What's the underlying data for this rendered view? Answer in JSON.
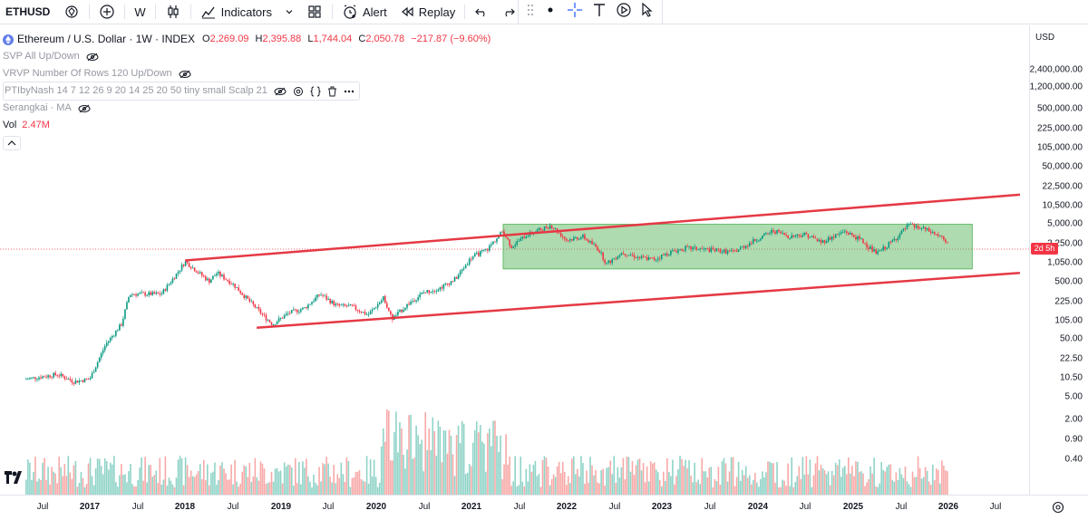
{
  "toolbar": {
    "symbol": "ETHUSD",
    "interval": "W",
    "indicators_label": "Indicators",
    "alert_label": "Alert",
    "replay_label": "Replay"
  },
  "legend": {
    "title": "Ethereum / U.S. Dollar · 1W · INDEX",
    "open_key": "O",
    "open": "2,269.09",
    "high_key": "H",
    "high": "2,395.88",
    "low_key": "L",
    "low": "1,744.04",
    "close_key": "C",
    "close": "2,050.78",
    "change": "−217.87 (−9.60%)",
    "indicators": [
      "SVP All Up/Down",
      "VRVP Number Of Rows 120 Up/Down",
      "PTIbyNash 14 7 12 26 9 20 14 25 20 50 tiny small Scalp 21",
      "Serangkai · MA"
    ],
    "vol_label": "Vol",
    "vol_value": "2.47M"
  },
  "price_axis": {
    "currency": "USD",
    "labels": [
      "2,400,000.00",
      "1,200,000.00",
      "500,000.00",
      "225,000.00",
      "105,000.00",
      "50,000.00",
      "22,500.00",
      "10,500.00",
      "5,000.00",
      "2,250.00",
      "1,050.00",
      "500.00",
      "225.00",
      "105.00",
      "50.00",
      "22.50",
      "10.50",
      "5.00",
      "2.00",
      "0.90",
      "0.40"
    ],
    "current_tag": "2d 5h"
  },
  "time_axis": {
    "labels": [
      {
        "text": "Jul",
        "year": false
      },
      {
        "text": "2017",
        "year": true
      },
      {
        "text": "Jul",
        "year": false
      },
      {
        "text": "2018",
        "year": true
      },
      {
        "text": "Jul",
        "year": false
      },
      {
        "text": "2019",
        "year": true
      },
      {
        "text": "Jul",
        "year": false
      },
      {
        "text": "2020",
        "year": true
      },
      {
        "text": "Jul",
        "year": false
      },
      {
        "text": "2021",
        "year": true
      },
      {
        "text": "Jul",
        "year": false
      },
      {
        "text": "2022",
        "year": true
      },
      {
        "text": "Jul",
        "year": false
      },
      {
        "text": "2023",
        "year": true
      },
      {
        "text": "Jul",
        "year": false
      },
      {
        "text": "2024",
        "year": true
      },
      {
        "text": "Jul",
        "year": false
      },
      {
        "text": "2025",
        "year": true
      },
      {
        "text": "Jul",
        "year": false
      },
      {
        "text": "2026",
        "year": true
      },
      {
        "text": "Jul",
        "year": false
      }
    ]
  },
  "chart_data": {
    "type": "line",
    "y_scale": "log",
    "x_range": [
      "2016-04",
      "2026-10"
    ],
    "y_range": [
      0.3,
      3000000
    ],
    "price_series": [
      [
        "2016-05",
        10
      ],
      [
        "2016-07",
        11
      ],
      [
        "2016-09",
        12
      ],
      [
        "2016-11",
        9
      ],
      [
        "2017-01",
        10
      ],
      [
        "2017-03",
        40
      ],
      [
        "2017-05",
        90
      ],
      [
        "2017-06",
        300
      ],
      [
        "2017-08",
        300
      ],
      [
        "2017-10",
        300
      ],
      [
        "2017-12",
        700
      ],
      [
        "2018-01",
        1100
      ],
      [
        "2018-02",
        850
      ],
      [
        "2018-04",
        500
      ],
      [
        "2018-05",
        700
      ],
      [
        "2018-07",
        450
      ],
      [
        "2018-09",
        230
      ],
      [
        "2018-11",
        120
      ],
      [
        "2018-12",
        90
      ],
      [
        "2019-02",
        140
      ],
      [
        "2019-04",
        170
      ],
      [
        "2019-06",
        300
      ],
      [
        "2019-08",
        190
      ],
      [
        "2019-10",
        180
      ],
      [
        "2019-12",
        130
      ],
      [
        "2020-02",
        260
      ],
      [
        "2020-03",
        110
      ],
      [
        "2020-05",
        200
      ],
      [
        "2020-07",
        320
      ],
      [
        "2020-09",
        380
      ],
      [
        "2020-11",
        550
      ],
      [
        "2021-01",
        1300
      ],
      [
        "2021-03",
        1800
      ],
      [
        "2021-05",
        3800
      ],
      [
        "2021-06",
        2000
      ],
      [
        "2021-08",
        3200
      ],
      [
        "2021-11",
        4700
      ],
      [
        "2022-01",
        2600
      ],
      [
        "2022-03",
        3000
      ],
      [
        "2022-05",
        1800
      ],
      [
        "2022-06",
        1000
      ],
      [
        "2022-08",
        1600
      ],
      [
        "2022-10",
        1300
      ],
      [
        "2022-12",
        1200
      ],
      [
        "2023-02",
        1600
      ],
      [
        "2023-04",
        1900
      ],
      [
        "2023-06",
        1800
      ],
      [
        "2023-08",
        1700
      ],
      [
        "2023-10",
        1600
      ],
      [
        "2023-12",
        2300
      ],
      [
        "2024-03",
        3800
      ],
      [
        "2024-05",
        3000
      ],
      [
        "2024-07",
        3300
      ],
      [
        "2024-09",
        2400
      ],
      [
        "2024-12",
        3700
      ],
      [
        "2025-02",
        2600
      ],
      [
        "2025-04",
        1500
      ],
      [
        "2025-06",
        2500
      ],
      [
        "2025-08",
        4700
      ],
      [
        "2025-10",
        4000
      ],
      [
        "2025-12",
        3000
      ],
      [
        "2026-01",
        2050
      ]
    ],
    "channel_upper": [
      [
        "2018-01",
        1150
      ],
      [
        "2026-10",
        16000
      ]
    ],
    "channel_lower": [
      [
        "2018-10",
        78
      ],
      [
        "2026-10",
        700
      ]
    ],
    "range_box": {
      "x": [
        "2021-05",
        "2026-04"
      ],
      "y": [
        820,
        4900
      ]
    }
  }
}
